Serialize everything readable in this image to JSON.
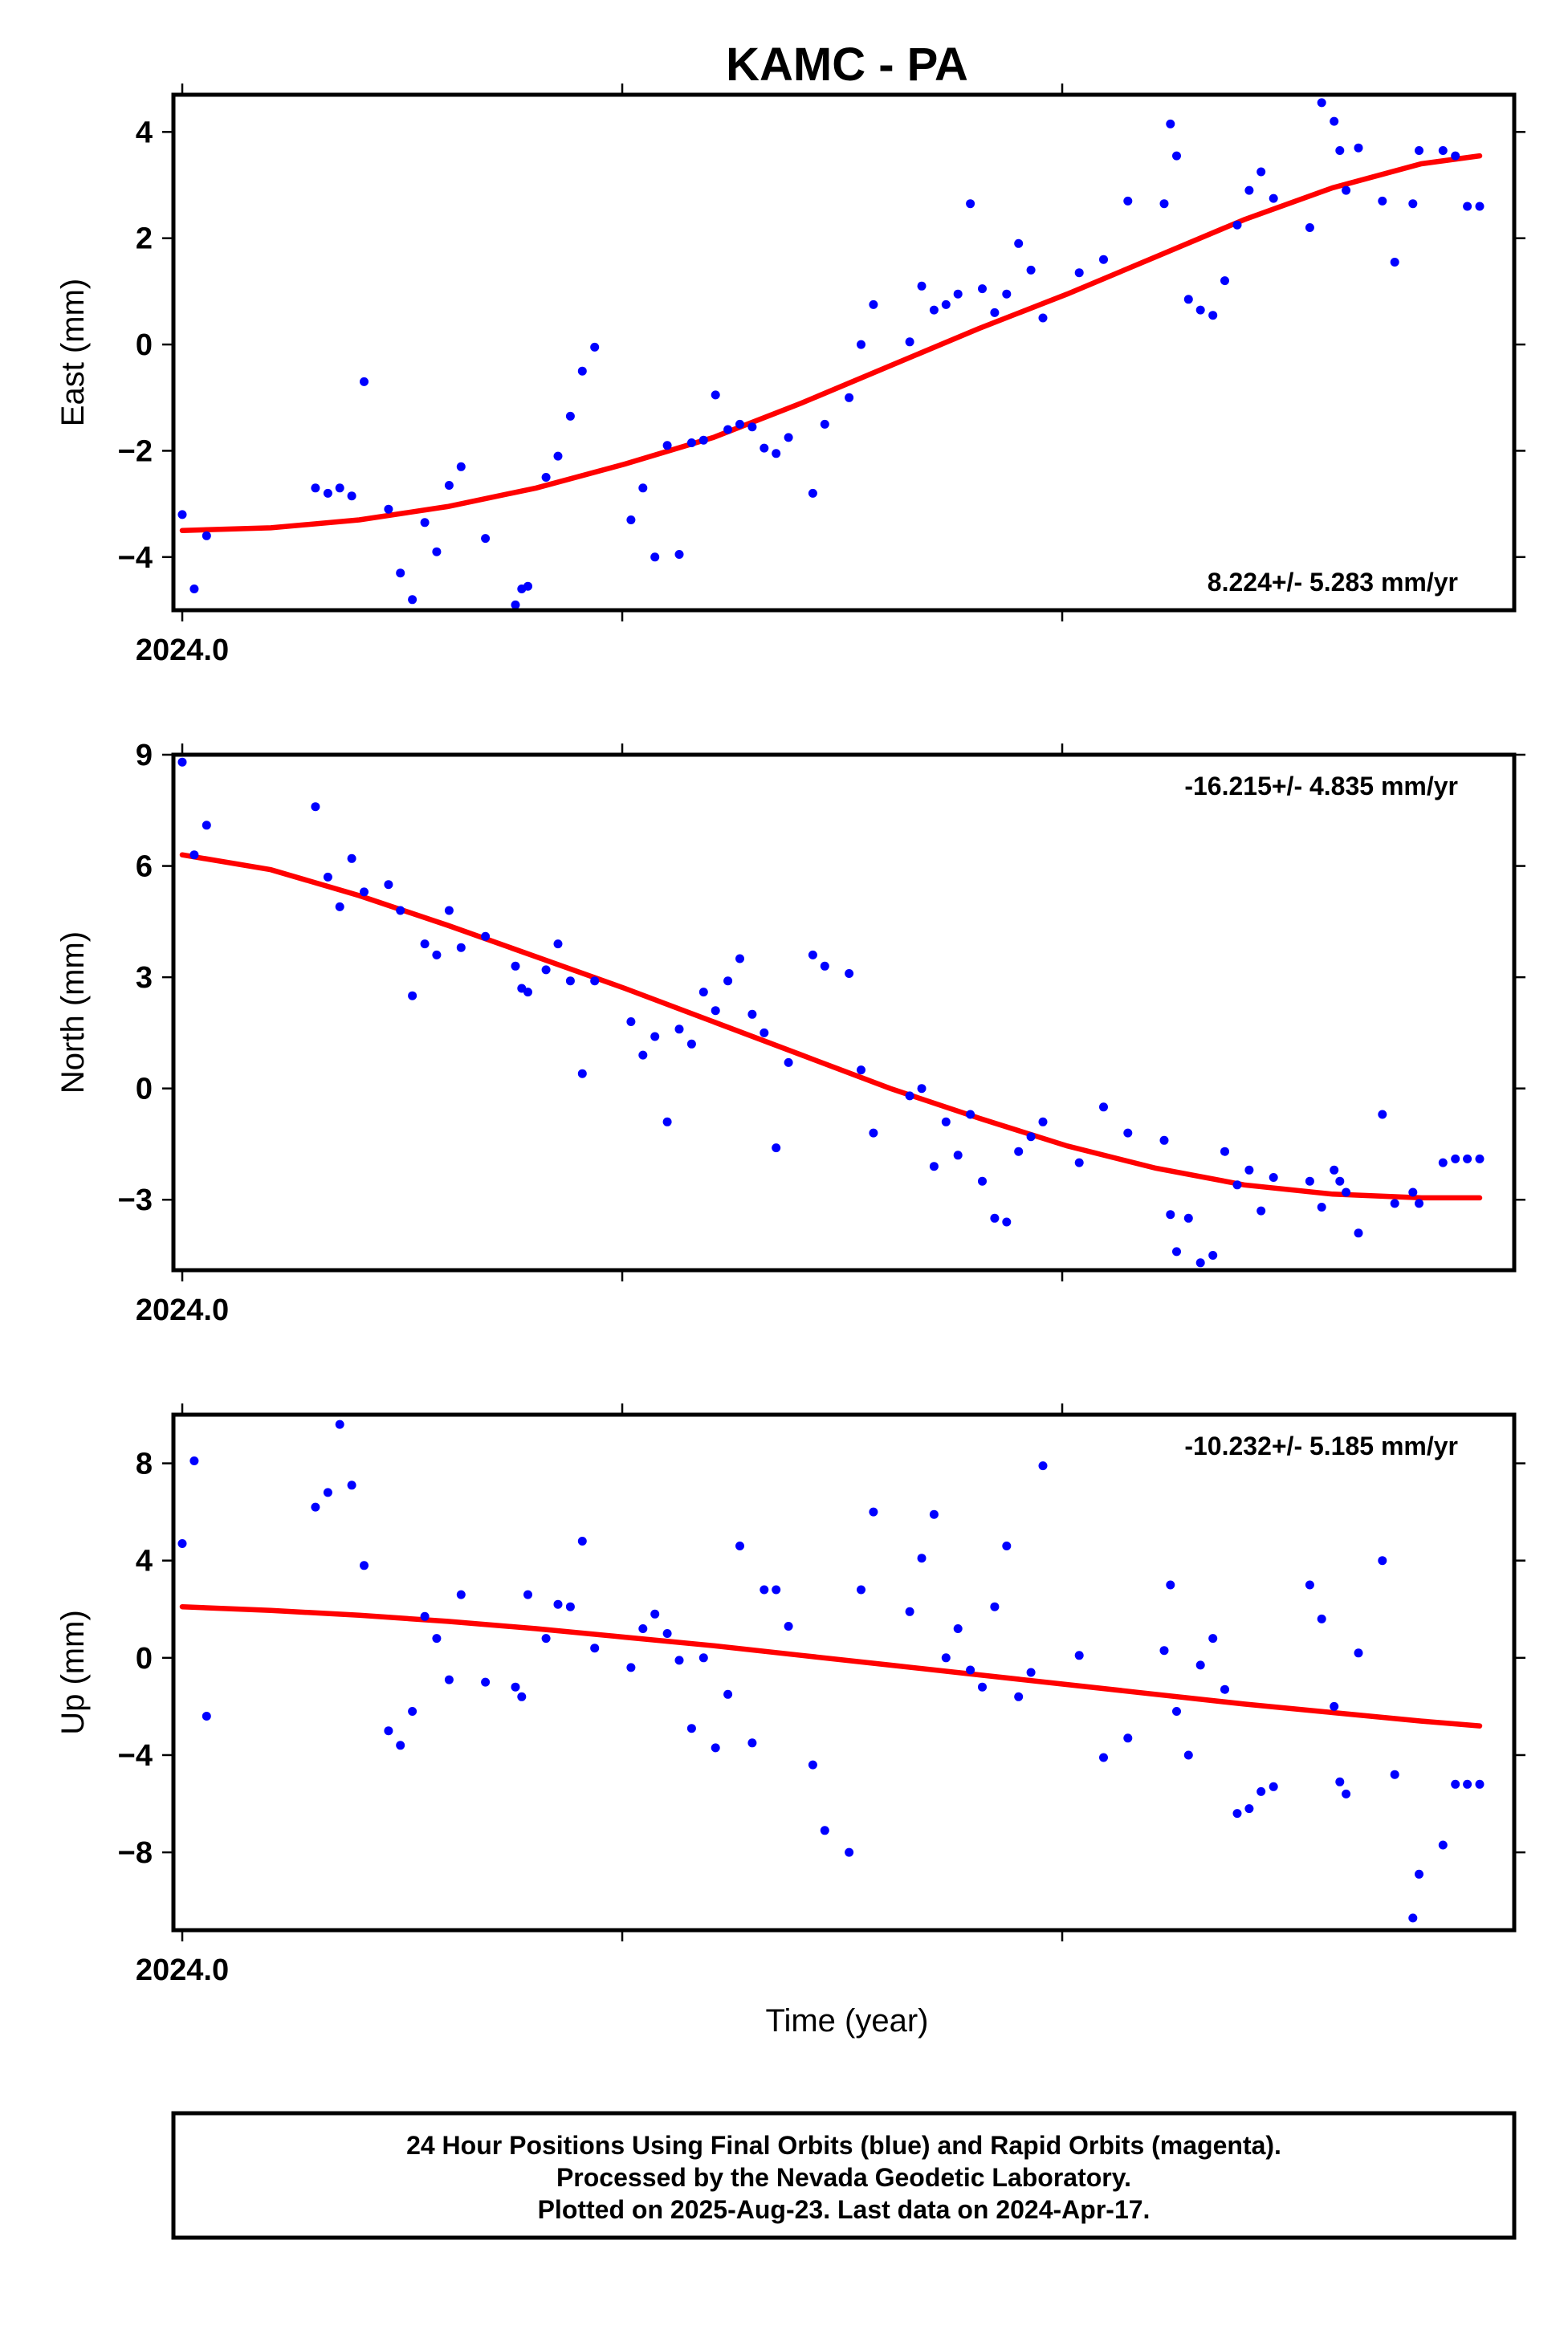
{
  "title": "KAMC - PA",
  "xlabel": "Time (year)",
  "footer": {
    "line1": "24 Hour Positions Using Final Orbits (blue) and Rapid Orbits (magenta).",
    "line2": "Processed by the Nevada Geodetic Laboratory.",
    "line3": "Plotted on 2025-Aug-23. Last data on 2024-Apr-17."
  },
  "colors": {
    "final_orbits": "#0000ff",
    "rapid_orbits": "#ff00ff",
    "fit": "#ff0000"
  },
  "chart_data": [
    {
      "type": "scatter",
      "ylabel": "East (mm)",
      "rate_label": "8.224+/- 5.283 mm/yr",
      "x_tick_label": "2024.0",
      "xlim": [
        2023.998,
        2024.301
      ],
      "ylim": [
        -5.0,
        4.7
      ],
      "yticks": [
        -4,
        -2,
        0,
        2,
        4
      ],
      "ytick_labels": [
        "−4",
        "−2",
        "0",
        "2",
        "4"
      ],
      "x": [
        2024.0,
        2024.0027,
        2024.0055,
        2024.0301,
        2024.0329,
        2024.0356,
        2024.0383,
        2024.0411,
        2024.0466,
        2024.0493,
        2024.052,
        2024.0548,
        2024.0575,
        2024.0603,
        2024.063,
        2024.0685,
        2024.0753,
        2024.0767,
        2024.0781,
        2024.0822,
        2024.0849,
        2024.0877,
        2024.0904,
        2024.0932,
        2024.1014,
        2024.1041,
        2024.1068,
        2024.1096,
        2024.1123,
        2024.1151,
        2024.1178,
        2024.1205,
        2024.1233,
        2024.126,
        2024.1288,
        2024.1315,
        2024.1342,
        2024.137,
        2024.1425,
        2024.1452,
        2024.1507,
        2024.1534,
        2024.1562,
        2024.1644,
        2024.1671,
        2024.1699,
        2024.1726,
        2024.1753,
        2024.1781,
        2024.1808,
        2024.1836,
        2024.1863,
        2024.189,
        2024.1918,
        2024.1945,
        2024.2027,
        2024.2082,
        2024.2137,
        2024.2219,
        2024.2233,
        2024.2247,
        2024.2274,
        2024.2301,
        2024.2329,
        2024.2356,
        2024.2384,
        2024.2411,
        2024.2438,
        2024.2466,
        2024.2548,
        2024.2575,
        2024.2603,
        2024.2616,
        2024.263,
        2024.2658,
        2024.2712,
        2024.274,
        2024.2781,
        2024.2795,
        2024.2849,
        2024.2877,
        2024.2904,
        2024.2932
      ],
      "y": [
        -3.2,
        -4.6,
        -3.6,
        -2.7,
        -2.8,
        -2.7,
        -2.85,
        -0.7,
        -3.1,
        -4.3,
        -4.8,
        -3.35,
        -3.9,
        -2.65,
        -2.3,
        -3.65,
        -4.9,
        -4.6,
        -4.55,
        -2.5,
        -2.1,
        -1.35,
        -0.5,
        -0.05,
        -3.3,
        -2.7,
        -4.0,
        -1.9,
        -3.95,
        -1.85,
        -1.8,
        -0.95,
        -1.6,
        -1.5,
        -1.55,
        -1.95,
        -2.05,
        -1.75,
        -2.8,
        -1.5,
        -1.0,
        0.0,
        0.75,
        0.05,
        1.1,
        0.65,
        0.75,
        0.95,
        2.65,
        1.05,
        0.6,
        0.95,
        1.9,
        1.4,
        0.5,
        1.35,
        1.6,
        2.7,
        2.65,
        4.15,
        3.55,
        0.85,
        0.65,
        0.55,
        1.2,
        2.25,
        2.9,
        3.25,
        2.75,
        2.2,
        4.55,
        4.2,
        3.65,
        2.9,
        3.7,
        2.7,
        1.55,
        2.65,
        3.65,
        3.65,
        3.55,
        2.6,
        2.6
      ],
      "fit": {
        "x": [
          2024.0,
          2024.02,
          2024.04,
          2024.06,
          2024.08,
          2024.1,
          2024.12,
          2024.14,
          2024.16,
          2024.18,
          2024.2,
          2024.22,
          2024.24,
          2024.26,
          2024.28,
          2024.2932
        ],
        "y": [
          -3.5,
          -3.45,
          -3.3,
          -3.05,
          -2.7,
          -2.25,
          -1.75,
          -1.1,
          -0.4,
          0.3,
          0.95,
          1.65,
          2.35,
          2.95,
          3.4,
          3.55
        ]
      }
    },
    {
      "type": "scatter",
      "ylabel": "North (mm)",
      "rate_label": "-16.215+/- 4.835 mm/yr",
      "x_tick_label": "2024.0",
      "xlim": [
        2023.998,
        2024.301
      ],
      "ylim": [
        -4.9,
        9.0
      ],
      "yticks": [
        -3,
        0,
        3,
        6,
        9
      ],
      "ytick_labels": [
        "−3",
        "0",
        "3",
        "6",
        "9"
      ],
      "x": [
        2024.0,
        2024.0027,
        2024.0055,
        2024.0301,
        2024.0329,
        2024.0356,
        2024.0383,
        2024.0411,
        2024.0466,
        2024.0493,
        2024.052,
        2024.0548,
        2024.0575,
        2024.0603,
        2024.063,
        2024.0685,
        2024.0753,
        2024.0767,
        2024.0781,
        2024.0822,
        2024.0849,
        2024.0877,
        2024.0904,
        2024.0932,
        2024.1014,
        2024.1041,
        2024.1068,
        2024.1096,
        2024.1123,
        2024.1151,
        2024.1178,
        2024.1205,
        2024.1233,
        2024.126,
        2024.1288,
        2024.1315,
        2024.1342,
        2024.137,
        2024.1425,
        2024.1452,
        2024.1507,
        2024.1534,
        2024.1562,
        2024.1644,
        2024.1671,
        2024.1699,
        2024.1726,
        2024.1753,
        2024.1781,
        2024.1808,
        2024.1836,
        2024.1863,
        2024.189,
        2024.1918,
        2024.1945,
        2024.2027,
        2024.2082,
        2024.2137,
        2024.2219,
        2024.2233,
        2024.2247,
        2024.2274,
        2024.2301,
        2024.2329,
        2024.2356,
        2024.2384,
        2024.2411,
        2024.2438,
        2024.2466,
        2024.2548,
        2024.2575,
        2024.2603,
        2024.2616,
        2024.263,
        2024.2658,
        2024.2712,
        2024.274,
        2024.2781,
        2024.2795,
        2024.2849,
        2024.2877,
        2024.2904,
        2024.2932
      ],
      "y": [
        8.8,
        6.3,
        7.1,
        7.6,
        5.7,
        4.9,
        6.2,
        5.3,
        5.5,
        4.8,
        2.5,
        3.9,
        3.6,
        4.8,
        3.8,
        4.1,
        3.3,
        2.7,
        2.6,
        3.2,
        3.9,
        2.9,
        0.4,
        2.9,
        1.8,
        0.9,
        1.4,
        -0.9,
        1.6,
        1.2,
        2.6,
        2.1,
        2.9,
        3.5,
        2.0,
        1.5,
        -1.6,
        0.7,
        3.6,
        3.3,
        3.1,
        0.5,
        -1.2,
        -0.2,
        0.0,
        -2.1,
        -0.9,
        -1.8,
        -0.7,
        -2.5,
        -3.5,
        -3.6,
        -1.7,
        -1.3,
        -0.9,
        -2.0,
        -0.5,
        -1.2,
        -1.4,
        -3.4,
        -4.4,
        -3.5,
        -4.7,
        -4.5,
        -1.7,
        -2.6,
        -2.2,
        -3.3,
        -2.4,
        -2.5,
        -3.2,
        -2.2,
        -2.5,
        -2.8,
        -3.9,
        -0.7,
        -3.1,
        -2.8,
        -3.1,
        -2.0,
        -1.9,
        -1.9,
        -1.9
      ],
      "fit": {
        "x": [
          2024.0,
          2024.02,
          2024.04,
          2024.06,
          2024.08,
          2024.1,
          2024.12,
          2024.14,
          2024.16,
          2024.18,
          2024.2,
          2024.22,
          2024.24,
          2024.26,
          2024.28,
          2024.2932
        ],
        "y": [
          6.3,
          5.9,
          5.2,
          4.4,
          3.55,
          2.7,
          1.8,
          0.9,
          0.0,
          -0.8,
          -1.55,
          -2.15,
          -2.6,
          -2.85,
          -2.95,
          -2.95
        ]
      }
    },
    {
      "type": "scatter",
      "ylabel": "Up (mm)",
      "rate_label": "-10.232+/- 5.185 mm/yr",
      "x_tick_label": "2024.0",
      "xlim": [
        2023.998,
        2024.301
      ],
      "ylim": [
        -11.2,
        10.0
      ],
      "yticks": [
        -8,
        -4,
        0,
        4,
        8
      ],
      "ytick_labels": [
        "−8",
        "−4",
        "0",
        "4",
        "8"
      ],
      "x": [
        2024.0,
        2024.0027,
        2024.0055,
        2024.0301,
        2024.0329,
        2024.0356,
        2024.0383,
        2024.0411,
        2024.0466,
        2024.0493,
        2024.052,
        2024.0548,
        2024.0575,
        2024.0603,
        2024.063,
        2024.0685,
        2024.0753,
        2024.0767,
        2024.0781,
        2024.0822,
        2024.0849,
        2024.0877,
        2024.0904,
        2024.0932,
        2024.1014,
        2024.1041,
        2024.1068,
        2024.1096,
        2024.1123,
        2024.1151,
        2024.1178,
        2024.1205,
        2024.1233,
        2024.126,
        2024.1288,
        2024.1315,
        2024.1342,
        2024.137,
        2024.1425,
        2024.1452,
        2024.1507,
        2024.1534,
        2024.1562,
        2024.1644,
        2024.1671,
        2024.1699,
        2024.1726,
        2024.1753,
        2024.1781,
        2024.1808,
        2024.1836,
        2024.1863,
        2024.189,
        2024.1918,
        2024.1945,
        2024.2027,
        2024.2082,
        2024.2137,
        2024.2219,
        2024.2233,
        2024.2247,
        2024.2274,
        2024.2301,
        2024.2329,
        2024.2356,
        2024.2384,
        2024.2411,
        2024.2438,
        2024.2466,
        2024.2548,
        2024.2575,
        2024.2603,
        2024.2616,
        2024.263,
        2024.2658,
        2024.2712,
        2024.274,
        2024.2781,
        2024.2795,
        2024.2849,
        2024.2877,
        2024.2904,
        2024.2932
      ],
      "y": [
        4.7,
        8.1,
        -2.4,
        6.2,
        6.8,
        9.6,
        7.1,
        3.8,
        -3.0,
        -3.6,
        -2.2,
        1.7,
        0.8,
        -0.9,
        2.6,
        -1.0,
        -1.2,
        -1.6,
        2.6,
        0.8,
        2.2,
        2.1,
        4.8,
        0.4,
        -0.4,
        1.2,
        1.8,
        1.0,
        -0.1,
        -2.9,
        0.0,
        -3.7,
        -1.5,
        4.6,
        -3.5,
        2.8,
        2.8,
        1.3,
        -4.4,
        -7.1,
        -8.0,
        2.8,
        6.0,
        1.9,
        4.1,
        5.9,
        0.0,
        1.2,
        -0.5,
        -1.2,
        2.1,
        4.6,
        -1.6,
        -0.6,
        7.9,
        0.1,
        -4.1,
        -3.3,
        0.3,
        3.0,
        -2.2,
        -4.0,
        -0.3,
        0.8,
        -1.3,
        -6.4,
        -6.2,
        -5.5,
        -5.3,
        3.0,
        1.6,
        -2.0,
        -5.1,
        -5.6,
        0.2,
        4.0,
        -4.8,
        -10.7,
        -8.9,
        -7.7,
        -5.2,
        -5.2,
        -5.2
      ],
      "fit": {
        "x": [
          2024.0,
          2024.02,
          2024.04,
          2024.06,
          2024.08,
          2024.1,
          2024.12,
          2024.14,
          2024.16,
          2024.18,
          2024.2,
          2024.22,
          2024.24,
          2024.26,
          2024.28,
          2024.2932
        ],
        "y": [
          2.1,
          1.95,
          1.75,
          1.5,
          1.2,
          0.85,
          0.5,
          0.1,
          -0.3,
          -0.7,
          -1.1,
          -1.5,
          -1.9,
          -2.25,
          -2.6,
          -2.8
        ]
      }
    }
  ]
}
